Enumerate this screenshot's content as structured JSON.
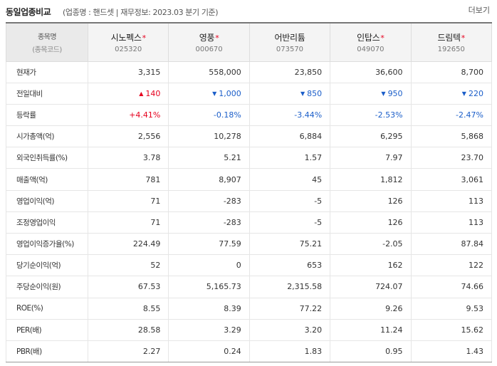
{
  "header": {
    "title": "동일업종비교",
    "subtitle": "(업종명 : 핸드셋 | 재무정보: 2023.03 분기 기준)",
    "more_label": "더보기"
  },
  "table": {
    "header_label": "종목명",
    "header_sublabel": "(종목코드)",
    "companies": [
      {
        "name": "시노펙스",
        "code": "025320"
      },
      {
        "name": "영풍",
        "code": "000670"
      },
      {
        "name": "어반리튬",
        "code": "073570"
      },
      {
        "name": "인탑스",
        "code": "049070"
      },
      {
        "name": "드림텍",
        "code": "192650"
      }
    ],
    "star": "*",
    "rows": [
      {
        "label": "현재가",
        "values": [
          "3,315",
          "558,000",
          "23,850",
          "36,600",
          "8,700"
        ]
      },
      {
        "label": "전일대비",
        "values": [
          "140",
          "1,000",
          "850",
          "950",
          "220"
        ],
        "directions": [
          "up",
          "down",
          "down",
          "down",
          "down"
        ],
        "arrows": {
          "up": "▲",
          "down": "▼"
        }
      },
      {
        "label": "등락률",
        "values": [
          "+4.41%",
          "-0.18%",
          "-3.44%",
          "-2.53%",
          "-2.47%"
        ],
        "directions": [
          "up",
          "down",
          "down",
          "down",
          "down"
        ]
      },
      {
        "label": "시가총액(억)",
        "values": [
          "2,556",
          "10,278",
          "6,884",
          "6,295",
          "5,868"
        ]
      },
      {
        "label": "외국인취득률(%)",
        "values": [
          "3.78",
          "5.21",
          "1.57",
          "7.97",
          "23.70"
        ]
      },
      {
        "label": "매출액(억)",
        "values": [
          "781",
          "8,907",
          "45",
          "1,812",
          "3,061"
        ]
      },
      {
        "label": "영업이익(억)",
        "values": [
          "71",
          "-283",
          "-5",
          "126",
          "113"
        ]
      },
      {
        "label": "조정영업이익",
        "values": [
          "71",
          "-283",
          "-5",
          "126",
          "113"
        ]
      },
      {
        "label": "영업이익증가율(%)",
        "values": [
          "224.49",
          "77.59",
          "75.21",
          "-2.05",
          "87.84"
        ]
      },
      {
        "label": "당기순이익(억)",
        "values": [
          "52",
          "0",
          "653",
          "162",
          "122"
        ]
      },
      {
        "label": "주당순이익(원)",
        "values": [
          "67.53",
          "5,165.73",
          "2,315.58",
          "724.07",
          "74.66"
        ]
      },
      {
        "label": "ROE(%)",
        "values": [
          "8.55",
          "8.39",
          "77.22",
          "9.26",
          "9.53"
        ]
      },
      {
        "label": "PER(배)",
        "values": [
          "28.58",
          "3.29",
          "3.20",
          "11.24",
          "15.62"
        ]
      },
      {
        "label": "PBR(배)",
        "values": [
          "2.27",
          "0.24",
          "1.83",
          "0.95",
          "1.43"
        ]
      }
    ]
  },
  "colors": {
    "up": "#e6001e",
    "down": "#1b5ec9"
  }
}
